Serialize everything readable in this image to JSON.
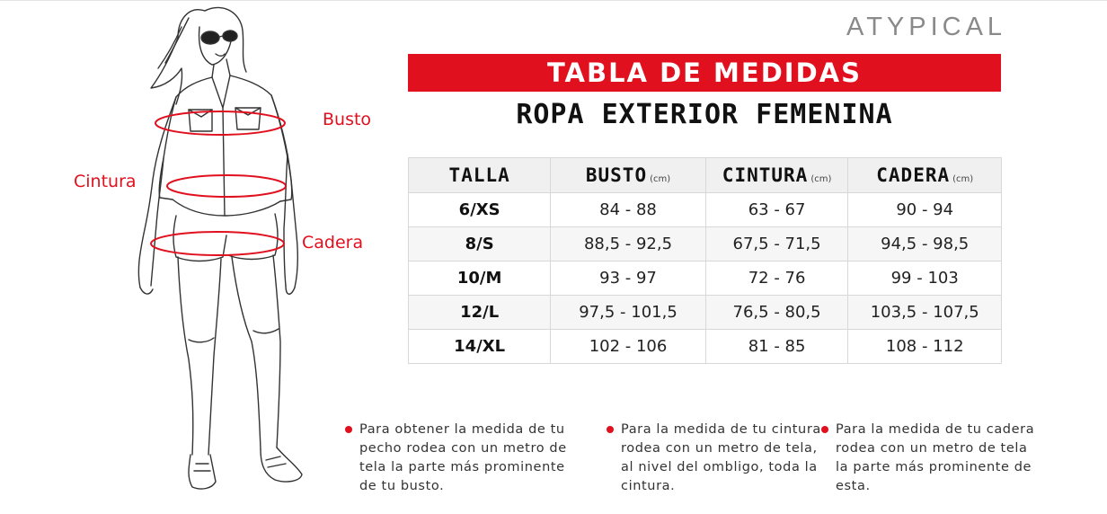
{
  "brand": {
    "logo_text": "ATYPICAL"
  },
  "header": {
    "title": "TABLA DE MEDIDAS",
    "subtitle": "ROPA EXTERIOR FEMENINA"
  },
  "figure": {
    "labels": {
      "busto": "Busto",
      "cintura": "Cintura",
      "cadera": "Cadera"
    }
  },
  "table": {
    "headers": [
      {
        "label": "TALLA",
        "unit": ""
      },
      {
        "label": "BUSTO",
        "unit": "(cm)"
      },
      {
        "label": "CINTURA",
        "unit": "(cm)"
      },
      {
        "label": "CADERA",
        "unit": "(cm)"
      }
    ],
    "rows": [
      [
        "6/XS",
        "84 - 88",
        "63 -  67",
        "90 - 94"
      ],
      [
        "8/S",
        "88,5 - 92,5",
        "67,5 -  71,5",
        "94,5 - 98,5"
      ],
      [
        "10/M",
        "93 - 97",
        "72 - 76",
        "99 - 103"
      ],
      [
        "12/L",
        "97,5 - 101,5",
        "76,5 - 80,5",
        "103,5 - 107,5"
      ],
      [
        "14/XL",
        "102 - 106",
        "81 - 85",
        "108 - 112"
      ]
    ]
  },
  "notes": [
    "Para obtener la medida de tu pecho rodea con un metro de tela la parte más prominente de tu busto.",
    "Para la medida de tu cintura rodea con un metro de tela, al nivel del ombligo, toda la cintura.",
    "Para la medida de tu cadera rodea con un metro de tela la parte más prominente de esta."
  ],
  "colors": {
    "accent": "#e1101e",
    "logo": "#8a8a8a"
  }
}
